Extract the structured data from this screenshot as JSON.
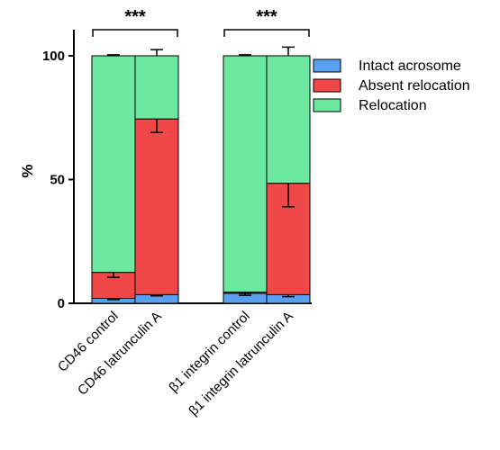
{
  "chart_data": {
    "type": "bar",
    "stacked": true,
    "categories": [
      "CD46 control",
      "CD46 latrunculin A",
      "β1 integrin control",
      "β1 integrin latrunculin A"
    ],
    "ylabel": "%",
    "ylim": [
      0,
      100
    ],
    "yticks": [
      0,
      50,
      100
    ],
    "legend_position": "right",
    "series": [
      {
        "name": "Intact acrosome",
        "color": "#5aa0f0",
        "values": [
          2,
          3.5,
          4,
          3.5
        ],
        "errors": [
          0.5,
          0.5,
          0.8,
          0.8
        ]
      },
      {
        "name": "Absent relocation",
        "color": "#f04848",
        "values": [
          10.5,
          71,
          0.5,
          45
        ],
        "errors": [
          2,
          5.5,
          0.5,
          9.5
        ]
      },
      {
        "name": "Relocation",
        "color": "#6ce8a0",
        "values": [
          87.5,
          25.5,
          95.5,
          51.5
        ],
        "errors": [
          0.4,
          2.5,
          0.4,
          3.5
        ]
      }
    ],
    "annotations": [
      {
        "label": "***",
        "from_category": 0,
        "to_category": 1
      },
      {
        "label": "***",
        "from_category": 2,
        "to_category": 3
      }
    ]
  }
}
